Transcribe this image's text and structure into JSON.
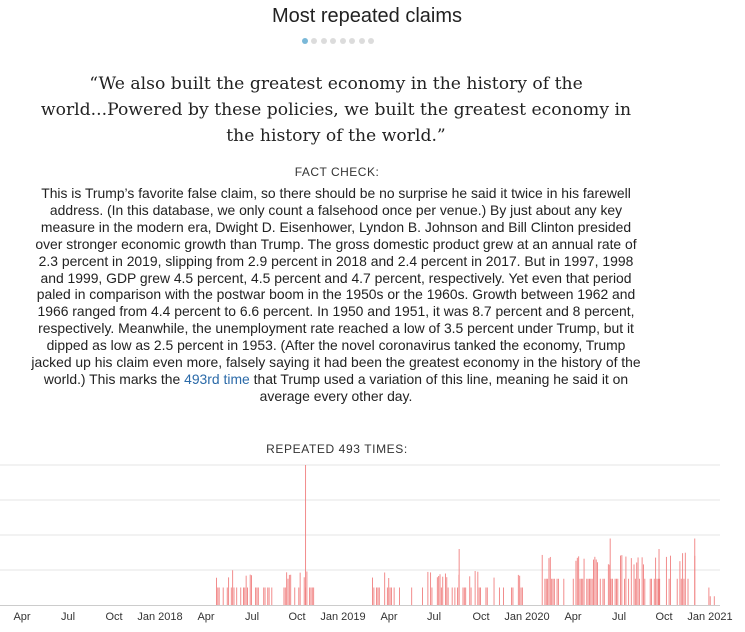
{
  "title": "Most repeated claims",
  "carousel": {
    "count": 8,
    "active": 0
  },
  "quote": "“We also built the greatest economy in the history of the world...Powered by these policies, we built the greatest economy in the history of the world.”",
  "fact_check": {
    "label": "FACT CHECK:",
    "text_before_link": "This is Trump’s favorite false claim, so there should be no surprise he said it twice in his farewell address. (In this database, we only count a falsehood once per venue.) By just about any key measure in the modern era, Dwight D. Eisenhower, Lyndon B. Johnson and Bill Clinton presided over stronger economic growth than Trump. The gross domestic product grew at an annual rate of 2.3 percent in 2019, slipping from 2.9 percent in 2018 and 2.4 percent in 2017. But in 1997, 1998 and 1999, GDP grew 4.5 percent, 4.5 percent and 4.7 percent, respectively. Yet even that period paled in comparison with the postwar boom in the 1950s or the 1960s. Growth between 1962 and 1966 ranged from 4.4 percent to 6.6 percent. In 1950 and 1951, it was 8.7 percent and 8 percent, respectively. Meanwhile, the unemployment rate reached a low of 3.5 percent under Trump, but it dipped as low as 2.5 percent in 1953. (After the novel coronavirus tanked the economy, Trump jacked up his claim even more, falsely saying it had been the greatest economy in the history of the world.) This marks the ",
    "link_text": "493rd time",
    "text_after_link": " that Trump used a variation of this line, meaning he said it on average every other day."
  },
  "repeated_label": "REPEATED 493 TIMES:",
  "chart_data": {
    "type": "bar",
    "x_ticks": [
      "Apr",
      "Jul",
      "Oct",
      "Jan 2018",
      "Apr",
      "Jul",
      "Oct",
      "Jan 2019",
      "Apr",
      "Jul",
      "Oct",
      "Jan 2020",
      "Apr",
      "Jul",
      "Oct",
      "Jan 2021"
    ],
    "x_range": [
      "2017-02-20",
      "2021-01-20"
    ],
    "ylim": [
      0,
      4
    ],
    "gridlines": [
      1,
      2,
      3,
      4
    ],
    "bar_color": "#f08080",
    "peak": {
      "date": "2018-10-19",
      "value": 4
    },
    "active_ranges": [
      {
        "start": "2018-04-25",
        "end": "2018-11-06",
        "max": 1,
        "density": 0.55
      },
      {
        "start": "2019-03-01",
        "end": "2019-12-25",
        "max": 1,
        "density": 0.45
      },
      {
        "start": "2020-02-01",
        "end": "2020-12-05",
        "max": 1.5,
        "density": 0.55
      },
      {
        "start": "2020-12-20",
        "end": "2021-01-15",
        "max": 0.5,
        "density": 0.15
      }
    ],
    "spikes": [
      {
        "date": "2019-08-20",
        "value": 1.6
      },
      {
        "date": "2020-06-15",
        "value": 1.9
      },
      {
        "date": "2020-09-20",
        "value": 1.6
      },
      {
        "date": "2020-11-30",
        "value": 1.9
      }
    ]
  }
}
